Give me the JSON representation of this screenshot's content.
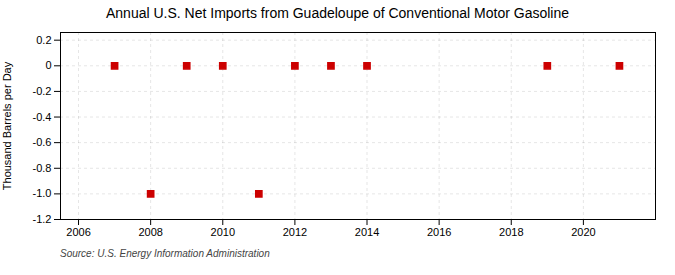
{
  "chart_data": {
    "type": "scatter",
    "title": "Annual U.S. Net Imports from Guadeloupe of Conventional Motor Gasoline",
    "ylabel": "Thousand Barrels per Day",
    "source": "Source: U.S. Energy Information Administration",
    "x": [
      2007,
      2008,
      2009,
      2010,
      2011,
      2012,
      2013,
      2014,
      2019,
      2021
    ],
    "values": [
      0,
      -1,
      0,
      0,
      -1,
      0,
      0,
      0,
      0,
      0
    ],
    "color": "#cc0000",
    "marker": "square",
    "xlim": [
      2005.5,
      2022.0
    ],
    "ylim": [
      -1.2,
      0.26
    ],
    "xticks": [
      2006,
      2008,
      2010,
      2012,
      2014,
      2016,
      2018,
      2020
    ],
    "yticks": [
      0.2,
      0,
      -0.2,
      -0.4,
      -0.6,
      -0.8,
      {
        "value": -1.0,
        "label": "-1.0"
      },
      -1.2
    ],
    "grid": true
  }
}
